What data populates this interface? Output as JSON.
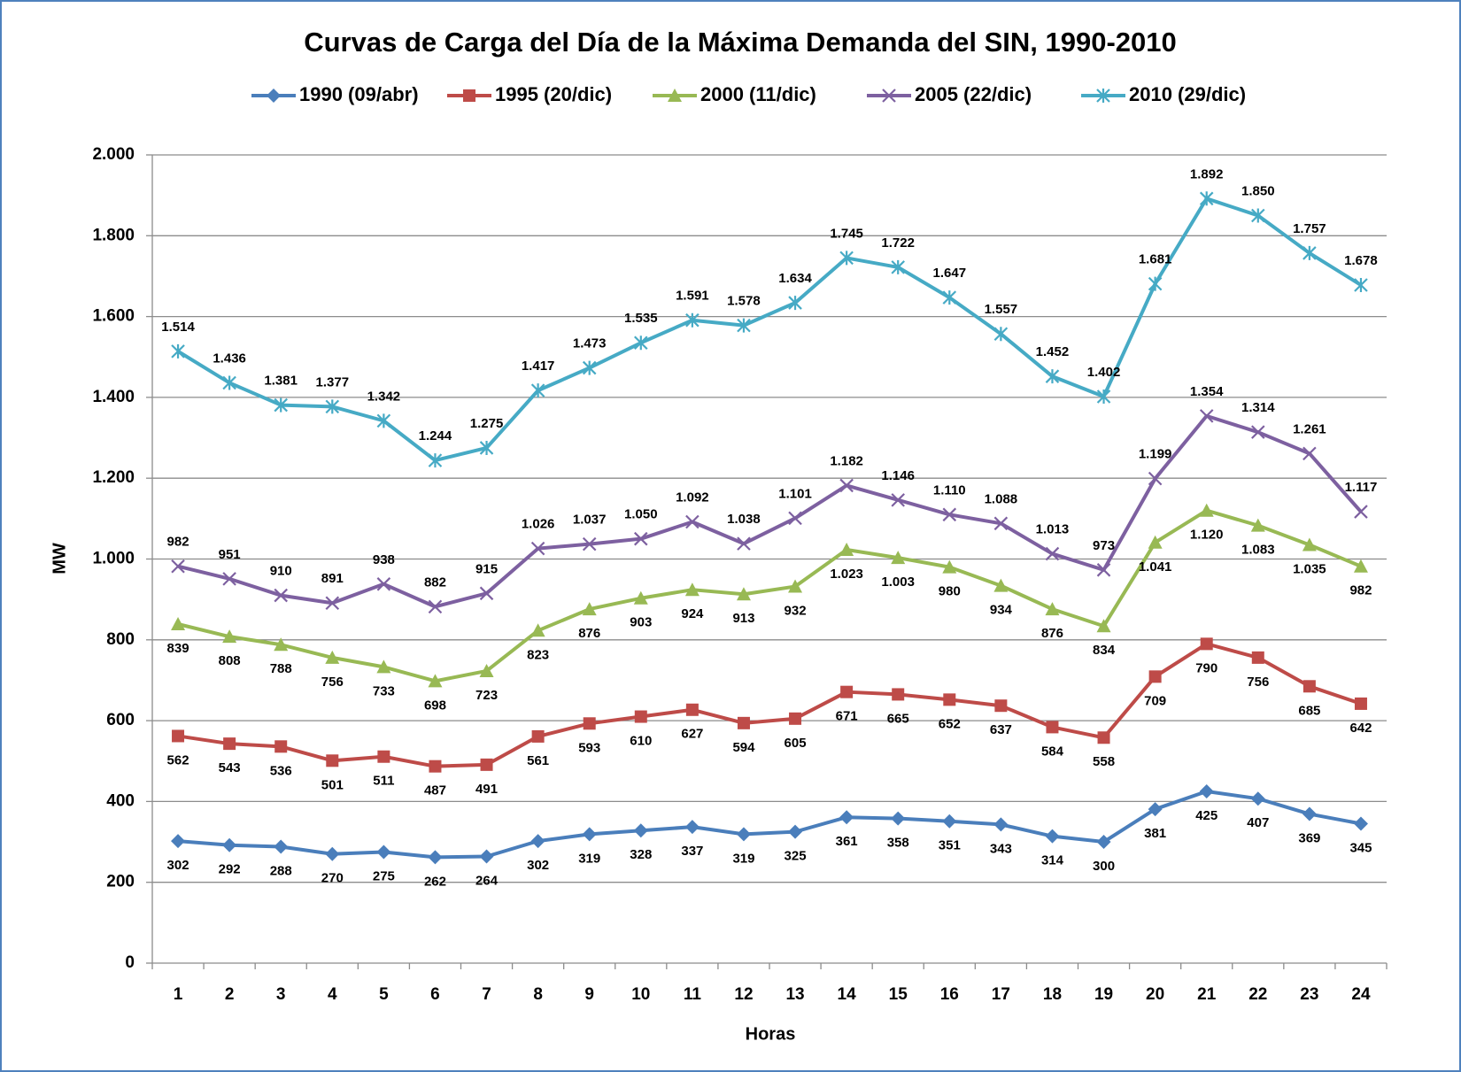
{
  "chart_data": {
    "type": "line",
    "title": "Curvas de Carga del Día de la Máxima Demanda del SIN, 1990-2010",
    "x_label": "Horas",
    "y_label": "MW",
    "categories": [
      "1",
      "2",
      "3",
      "4",
      "5",
      "6",
      "7",
      "8",
      "9",
      "10",
      "11",
      "12",
      "13",
      "14",
      "15",
      "16",
      "17",
      "18",
      "19",
      "20",
      "21",
      "22",
      "23",
      "24"
    ],
    "ylim": [
      0,
      2000
    ],
    "yticks": [
      0,
      {
        "value": 200,
        "label": "200"
      },
      400,
      600,
      800,
      {
        "value": 1000,
        "label": "1.000"
      },
      {
        "value": 1200,
        "label": "1.200"
      },
      {
        "value": 1400,
        "label": "1.400"
      },
      {
        "value": 1600,
        "label": "1.600"
      },
      {
        "value": 1800,
        "label": "1.800"
      },
      {
        "value": 2000,
        "label": "2.000"
      }
    ],
    "grid": true,
    "legend": "top",
    "series": [
      {
        "name": "1990 (09/abr)",
        "color": "#4a7ebb",
        "marker": "diamond",
        "values": [
          302,
          292,
          288,
          270,
          275,
          262,
          264,
          302,
          319,
          328,
          337,
          319,
          325,
          361,
          358,
          351,
          343,
          314,
          300,
          381,
          425,
          407,
          369,
          345
        ]
      },
      {
        "name": "1995 (20/dic)",
        "color": "#be4b48",
        "marker": "square",
        "values": [
          562,
          543,
          536,
          501,
          511,
          487,
          491,
          561,
          593,
          610,
          627,
          594,
          605,
          671,
          665,
          652,
          637,
          584,
          558,
          709,
          790,
          756,
          685,
          642
        ]
      },
      {
        "name": "2000 (11/dic)",
        "color": "#98b954",
        "marker": "triangle",
        "values": [
          839,
          808,
          788,
          756,
          733,
          698,
          723,
          823,
          876,
          903,
          924,
          913,
          932,
          1023,
          1003,
          980,
          934,
          876,
          834,
          1041,
          1120,
          1083,
          1035,
          982
        ],
        "value_labels": [
          "839",
          "808",
          "788",
          "756",
          "733",
          "698",
          "723",
          "823",
          "876",
          "903",
          "924",
          "913",
          "932",
          "1.023",
          "1.003",
          "980",
          "934",
          "876",
          "834",
          "1.041",
          "1.120",
          "1.083",
          "1.035",
          "982"
        ]
      },
      {
        "name": "2005 (22/dic)",
        "color": "#7d60a0",
        "marker": "x",
        "values": [
          982,
          951,
          910,
          891,
          938,
          882,
          915,
          1026,
          1037,
          1050,
          1092,
          1038,
          1101,
          1182,
          1146,
          1110,
          1088,
          1013,
          973,
          1199,
          1354,
          1314,
          1261,
          1117
        ],
        "value_labels": [
          "982",
          "951",
          "910",
          "891",
          "938",
          "882",
          "915",
          "1.026",
          "1.037",
          "1.050",
          "1.092",
          "1.038",
          "1.101",
          "1.182",
          "1.146",
          "1.110",
          "1.088",
          "1.013",
          "973",
          "1.199",
          "1.354",
          "1.314",
          "1.261",
          "1.117"
        ]
      },
      {
        "name": "2010 (29/dic)",
        "color": "#46aac5",
        "marker": "star",
        "values": [
          1514,
          1436,
          1381,
          1377,
          1342,
          1244,
          1275,
          1417,
          1473,
          1535,
          1591,
          1578,
          1634,
          1745,
          1722,
          1647,
          1557,
          1452,
          1402,
          1681,
          1892,
          1850,
          1757,
          1678
        ],
        "value_labels": [
          "1.514",
          "1.436",
          "1.381",
          "1.377",
          "1.342",
          "1.244",
          "1.275",
          "1.417",
          "1.473",
          "1.535",
          "1.591",
          "1.578",
          "1.634",
          "1.745",
          "1.722",
          "1.647",
          "1.557",
          "1.452",
          "1.402",
          "1.681",
          "1.892",
          "1.850",
          "1.757",
          "1.678"
        ]
      }
    ]
  }
}
